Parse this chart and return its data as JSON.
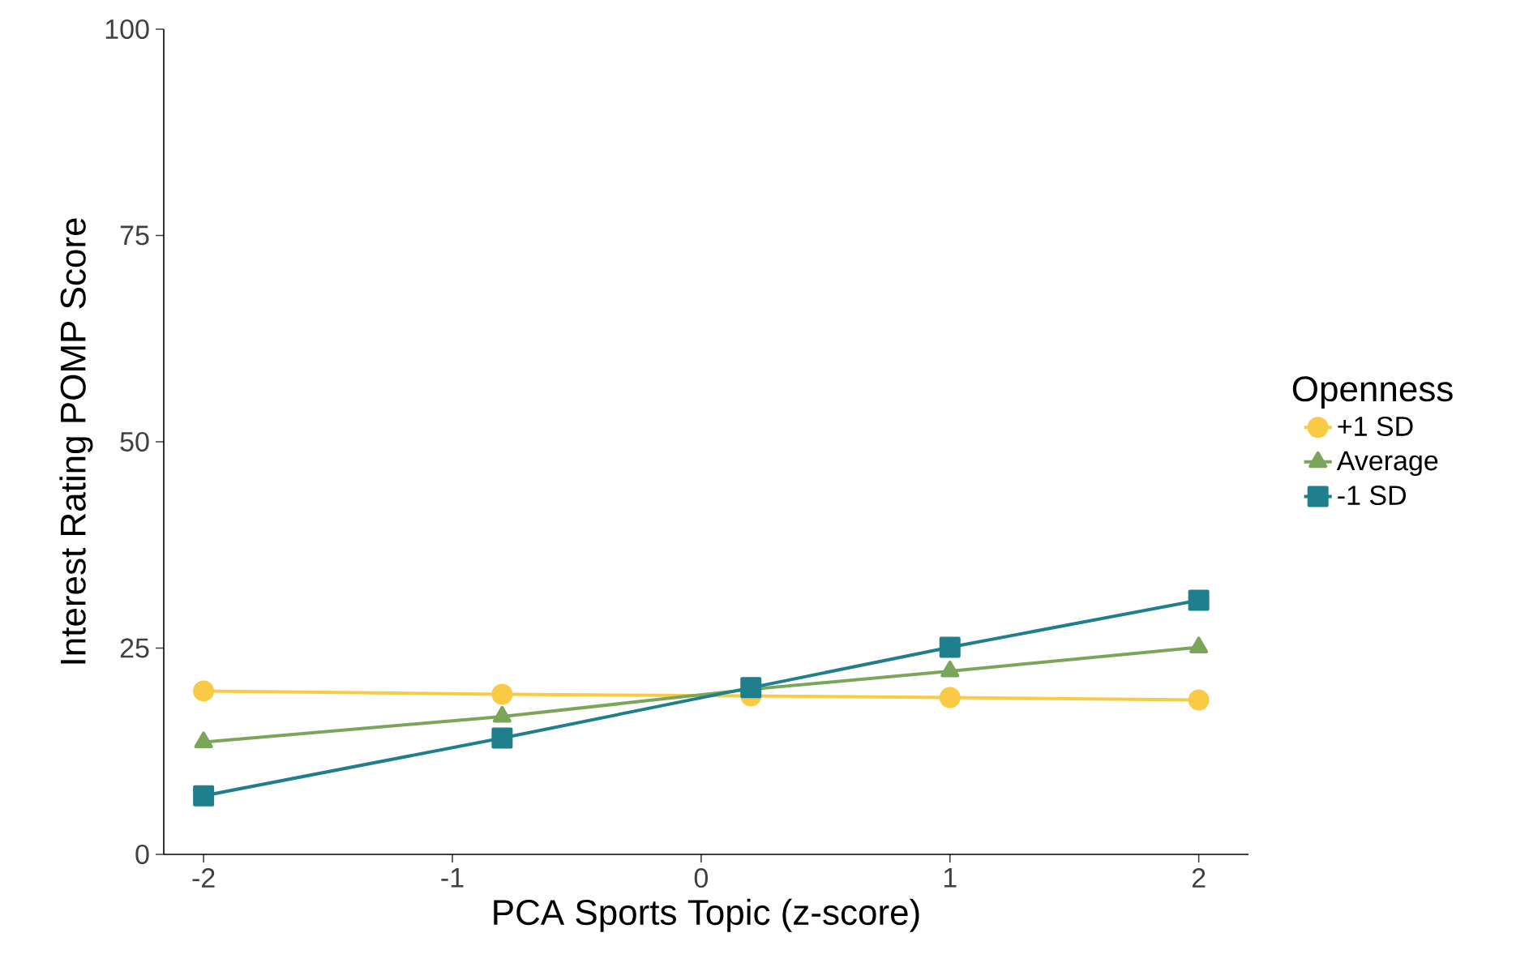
{
  "chart_data": {
    "type": "line",
    "xlabel": "PCA Sports Topic (z-score)",
    "ylabel": "Interest Rating POMP Score",
    "legend_title": "Openness",
    "x": [
      -2,
      -0.8,
      0.2,
      1,
      2
    ],
    "series": [
      {
        "name": "+1 SD",
        "color": "#f9cb45",
        "marker": "circle",
        "values": [
          19.8,
          19.4,
          19.2,
          19.0,
          18.7
        ]
      },
      {
        "name": "Average",
        "color": "#7aa65a",
        "marker": "triangle",
        "values": [
          13.6,
          16.7,
          20.0,
          22.2,
          25.1
        ]
      },
      {
        "name": "-1 SD",
        "color": "#1f7f8c",
        "marker": "square",
        "values": [
          7.1,
          14.1,
          20.2,
          25.1,
          30.8
        ]
      }
    ],
    "xlim": [
      -2.16,
      2.2
    ],
    "ylim": [
      0,
      100
    ],
    "xticks": [
      -2,
      -1,
      0,
      1,
      2
    ],
    "yticks": [
      0,
      25,
      50,
      75,
      100
    ],
    "grid": false,
    "legend": "right",
    "line_style": "solid"
  }
}
